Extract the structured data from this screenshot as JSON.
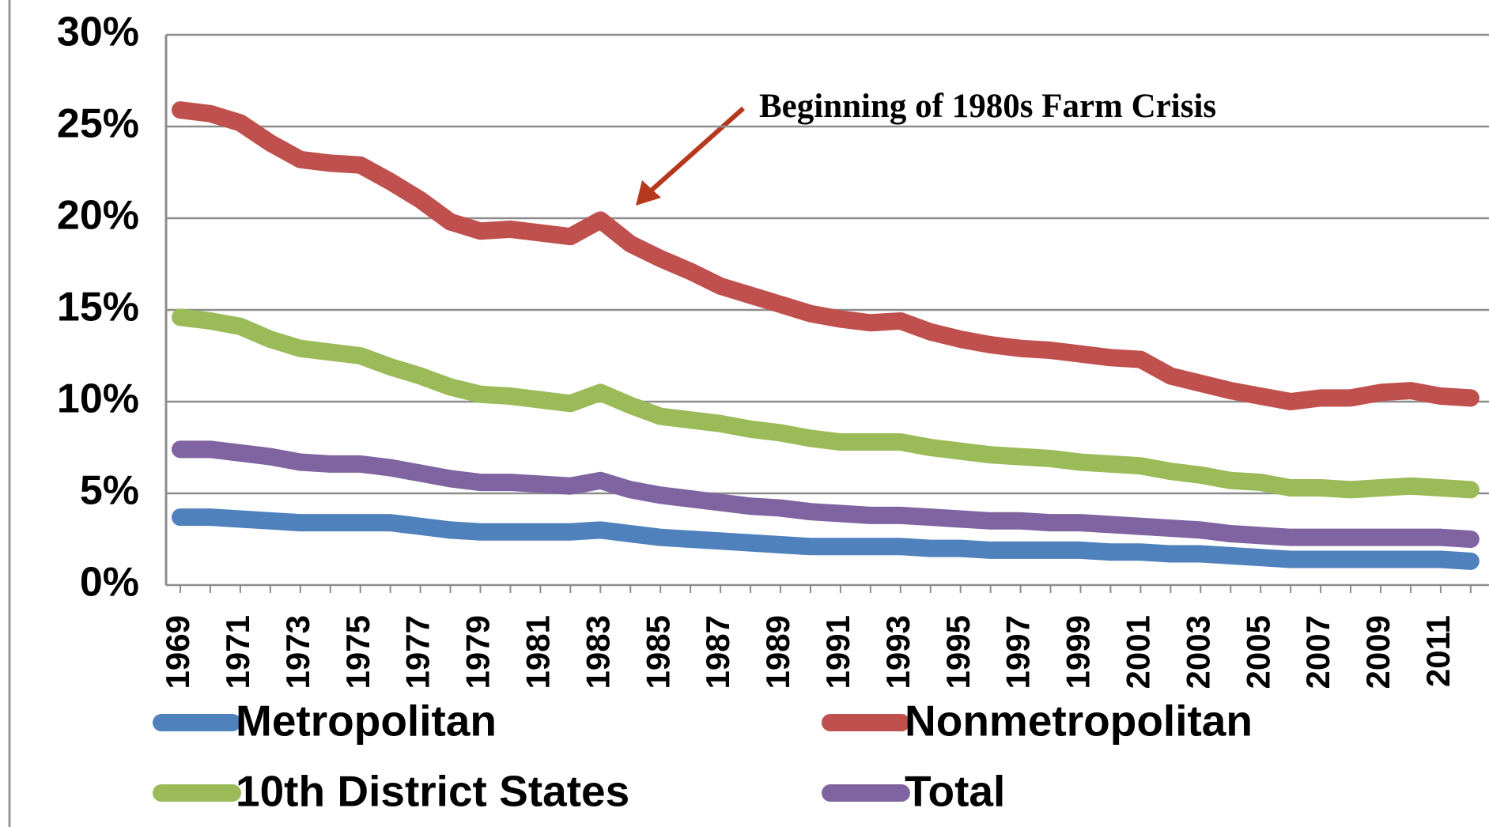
{
  "chart_data": {
    "type": "line",
    "annotation": "Beginning of 1980s Farm Crisis",
    "categories": [
      "1969",
      null,
      "1971",
      null,
      "1973",
      null,
      "1975",
      null,
      "1977",
      null,
      "1979",
      null,
      "1981",
      null,
      "1983",
      null,
      "1985",
      null,
      "1987",
      null,
      "1989",
      null,
      "1991",
      null,
      "1993",
      null,
      "1995",
      null,
      "1997",
      null,
      "1999",
      null,
      "2001",
      null,
      "2003",
      null,
      "2005",
      null,
      "2007",
      null,
      "2009",
      null,
      "2011",
      null
    ],
    "series": [
      {
        "name": "Metropolitan",
        "color": "#4f81bd",
        "values": [
          3.7,
          3.7,
          3.6,
          3.5,
          3.4,
          3.4,
          3.4,
          3.4,
          3.2,
          3.0,
          2.9,
          2.9,
          2.9,
          2.9,
          3.0,
          2.8,
          2.6,
          2.5,
          2.4,
          2.3,
          2.2,
          2.1,
          2.1,
          2.1,
          2.1,
          2.0,
          2.0,
          1.9,
          1.9,
          1.9,
          1.9,
          1.8,
          1.8,
          1.7,
          1.7,
          1.6,
          1.5,
          1.4,
          1.4,
          1.4,
          1.4,
          1.4,
          1.4,
          1.3
        ]
      },
      {
        "name": "Nonmetropolitan",
        "color": "#c0504d",
        "values": [
          25.9,
          25.7,
          25.2,
          24.1,
          23.2,
          23.0,
          22.9,
          22.0,
          21.0,
          19.8,
          19.3,
          19.4,
          19.2,
          19.0,
          19.9,
          18.6,
          17.8,
          17.1,
          16.3,
          15.8,
          15.3,
          14.8,
          14.5,
          14.3,
          14.4,
          13.8,
          13.4,
          13.1,
          12.9,
          12.8,
          12.6,
          12.4,
          12.3,
          11.4,
          11.0,
          10.6,
          10.3,
          10.0,
          10.2,
          10.2,
          10.5,
          10.6,
          10.3,
          10.2
        ]
      },
      {
        "name": "10th District States",
        "color": "#9bbb59",
        "values": [
          14.6,
          14.4,
          14.1,
          13.4,
          12.9,
          12.7,
          12.5,
          11.9,
          11.4,
          10.8,
          10.4,
          10.3,
          10.1,
          9.9,
          10.5,
          9.8,
          9.2,
          9.0,
          8.8,
          8.5,
          8.3,
          8.0,
          7.8,
          7.8,
          7.8,
          7.5,
          7.3,
          7.1,
          7.0,
          6.9,
          6.7,
          6.6,
          6.5,
          6.2,
          6.0,
          5.7,
          5.6,
          5.3,
          5.3,
          5.2,
          5.3,
          5.4,
          5.3,
          5.2
        ]
      },
      {
        "name": "Total",
        "color": "#8064a2",
        "values": [
          7.4,
          7.4,
          7.2,
          7.0,
          6.7,
          6.6,
          6.6,
          6.4,
          6.1,
          5.8,
          5.6,
          5.6,
          5.5,
          5.4,
          5.7,
          5.2,
          4.9,
          4.7,
          4.5,
          4.3,
          4.2,
          4.0,
          3.9,
          3.8,
          3.8,
          3.7,
          3.6,
          3.5,
          3.5,
          3.4,
          3.4,
          3.3,
          3.2,
          3.1,
          3.0,
          2.8,
          2.7,
          2.6,
          2.6,
          2.6,
          2.6,
          2.6,
          2.6,
          2.5
        ]
      }
    ],
    "ylim": [
      0,
      30
    ],
    "yticks": [
      {
        "value": 0,
        "label": "0%"
      },
      {
        "value": 5,
        "label": "5%"
      },
      {
        "value": 10,
        "label": "10%"
      },
      {
        "value": 15,
        "label": "15%"
      },
      {
        "value": 20,
        "label": "20%"
      },
      {
        "value": 25,
        "label": "25%"
      },
      {
        "value": 30,
        "label": "30%"
      }
    ],
    "grid": true
  }
}
